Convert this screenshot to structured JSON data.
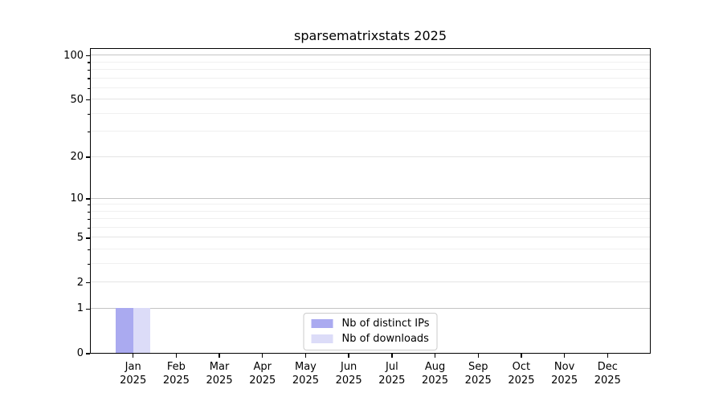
{
  "title": "sparsematrixstats 2025",
  "chart_data": {
    "type": "bar",
    "title": "sparsematrixstats 2025",
    "xlabel": "",
    "ylabel": "",
    "yscale": "log1p",
    "ylim": [
      0,
      113
    ],
    "yticks": [
      "0",
      "1",
      "2",
      "5",
      "10",
      "20",
      "50",
      "100"
    ],
    "ytick_values": [
      0,
      1,
      2,
      5,
      10,
      20,
      50,
      100
    ],
    "gridlines": {
      "major": [
        1,
        10,
        100
      ],
      "labeled_minor": [
        2,
        5,
        20,
        50
      ],
      "minor": [
        3,
        4,
        6,
        7,
        8,
        9,
        30,
        40,
        60,
        70,
        80,
        90
      ]
    },
    "x_tick_labels": [
      {
        "month": "Jan",
        "year": "2025"
      },
      {
        "month": "Feb",
        "year": "2025"
      },
      {
        "month": "Mar",
        "year": "2025"
      },
      {
        "month": "Apr",
        "year": "2025"
      },
      {
        "month": "May",
        "year": "2025"
      },
      {
        "month": "Jun",
        "year": "2025"
      },
      {
        "month": "Jul",
        "year": "2025"
      },
      {
        "month": "Aug",
        "year": "2025"
      },
      {
        "month": "Sep",
        "year": "2025"
      },
      {
        "month": "Oct",
        "year": "2025"
      },
      {
        "month": "Nov",
        "year": "2025"
      },
      {
        "month": "Dec",
        "year": "2025"
      }
    ],
    "series": [
      {
        "name": "Nb of distinct IPs",
        "color": "#aaaaf0",
        "values": [
          1,
          0,
          0,
          0,
          0,
          0,
          0,
          0,
          0,
          0,
          0,
          0
        ]
      },
      {
        "name": "Nb of downloads",
        "color": "#dcdcf8",
        "values": [
          1,
          0,
          0,
          0,
          0,
          0,
          0,
          0,
          0,
          0,
          0,
          0
        ]
      }
    ],
    "legend_position": "lower center",
    "grid": true
  },
  "colors": {
    "background": "#ffffff",
    "spine": "#000000",
    "major_grid": "#c4c4c4",
    "labeled_minor_grid": "#e4e4e4",
    "minor_grid": "#f0f0f0",
    "legend_border": "#cccccc",
    "bar_distinct_ips": "#aaaaf0",
    "bar_downloads": "#dcdcf8"
  }
}
